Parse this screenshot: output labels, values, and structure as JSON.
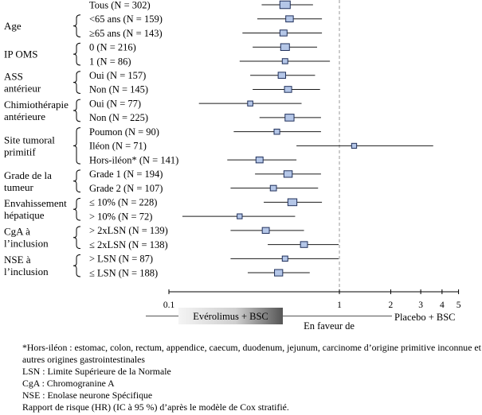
{
  "chart_data": {
    "type": "scatter",
    "x_scale": "log",
    "xlim": [
      0.1,
      5
    ],
    "x_ticks": [
      0.1,
      1,
      2,
      3,
      4,
      5
    ],
    "x_tick_labels": [
      "0.1",
      "1",
      "2",
      "3",
      "4",
      "5"
    ],
    "reference_line_x": 1,
    "grid": false,
    "favours_left": "Evérolimus + BSC",
    "favours_label": "En faveur de",
    "favours_right": "Placebo + BSC",
    "colors": {
      "marker_fill": "#b4c6e7",
      "marker_edge": "#1f2f5a",
      "ci_line": "#1a1a1a",
      "reference_line": "#9a9a9a"
    },
    "groups": [
      {
        "label_lines": [],
        "rows": [
          {
            "label": "Tous (N = 302)",
            "hr": 0.48,
            "ci_low": 0.35,
            "ci_high": 0.7
          }
        ]
      },
      {
        "label_lines": [
          "Age"
        ],
        "rows": [
          {
            "label": "<65 ans (N = 159)",
            "hr": 0.51,
            "ci_low": 0.33,
            "ci_high": 0.79
          },
          {
            "label": "≥65 ans (N = 143)",
            "hr": 0.47,
            "ci_low": 0.27,
            "ci_high": 0.79
          }
        ]
      },
      {
        "label_lines": [
          "IP OMS"
        ],
        "rows": [
          {
            "label": "0 (N = 216)",
            "hr": 0.48,
            "ci_low": 0.31,
            "ci_high": 0.74
          },
          {
            "label": "1 (N = 86)",
            "hr": 0.48,
            "ci_low": 0.26,
            "ci_high": 0.88
          }
        ]
      },
      {
        "label_lines": [
          "ASS",
          "antérieur"
        ],
        "rows": [
          {
            "label": "Oui (N = 157)",
            "hr": 0.46,
            "ci_low": 0.3,
            "ci_high": 0.72
          },
          {
            "label": "Non (N = 145)",
            "hr": 0.5,
            "ci_low": 0.31,
            "ci_high": 0.77
          }
        ]
      },
      {
        "label_lines": [
          "Chimiothérapie",
          "antérieure"
        ],
        "rows": [
          {
            "label": "Oui (N = 77)",
            "hr": 0.3,
            "ci_low": 0.15,
            "ci_high": 0.6
          },
          {
            "label": "Non (N = 225)",
            "hr": 0.51,
            "ci_low": 0.34,
            "ci_high": 0.78
          }
        ]
      },
      {
        "label_lines": [
          "Site tumoral",
          "primitif"
        ],
        "rows": [
          {
            "label": "Poumon (N = 90)",
            "hr": 0.43,
            "ci_low": 0.24,
            "ci_high": 0.78
          },
          {
            "label": "Iléon (N = 71)",
            "hr": 1.22,
            "ci_low": 0.56,
            "ci_high": 3.55
          },
          {
            "label": "Hors-iléon* (N = 141)",
            "hr": 0.34,
            "ci_low": 0.22,
            "ci_high": 0.56
          }
        ]
      },
      {
        "label_lines": [
          "Grade de la",
          "tumeur"
        ],
        "rows": [
          {
            "label": "Grade 1 (N = 194)",
            "hr": 0.5,
            "ci_low": 0.32,
            "ci_high": 0.78
          },
          {
            "label": "Grade 2 (N = 107)",
            "hr": 0.41,
            "ci_low": 0.23,
            "ci_high": 0.75
          }
        ]
      },
      {
        "label_lines": [
          "Envahissement",
          "hépatique"
        ],
        "rows": [
          {
            "label": "≤ 10% (N = 228)",
            "hr": 0.53,
            "ci_low": 0.36,
            "ci_high": 0.79
          },
          {
            "label": "> 10% (N = 72)",
            "hr": 0.26,
            "ci_low": 0.12,
            "ci_high": 0.55
          }
        ]
      },
      {
        "label_lines": [
          "CgA à",
          "l’inclusion"
        ],
        "rows": [
          {
            "label": "> 2xLSN (N = 139)",
            "hr": 0.37,
            "ci_low": 0.23,
            "ci_high": 0.62
          },
          {
            "label": "≤ 2xLSN (N = 138)",
            "hr": 0.62,
            "ci_low": 0.38,
            "ci_high": 0.99
          }
        ]
      },
      {
        "label_lines": [
          "NSE à",
          "l’inclusion"
        ],
        "rows": [
          {
            "label": "> LSN (N = 87)",
            "hr": 0.48,
            "ci_low": 0.23,
            "ci_high": 0.99
          },
          {
            "label": "≤ LSN (N = 188)",
            "hr": 0.44,
            "ci_low": 0.29,
            "ci_high": 0.67
          }
        ]
      }
    ]
  },
  "footnotes": [
    "*Hors-iléon : estomac, colon, rectum, appendice, caecum, duodenum, jejunum, carcinome d’origine primitive inconnue et autres origines gastrointestinales",
    "LSN : Limite Supérieure de la Normale",
    "CgA : Chromogranine A",
    "NSE : Enolase neurone Spécifique",
    "Rapport de risque (HR) (IC à 95 %) d’après le modèle de Cox stratifié."
  ]
}
